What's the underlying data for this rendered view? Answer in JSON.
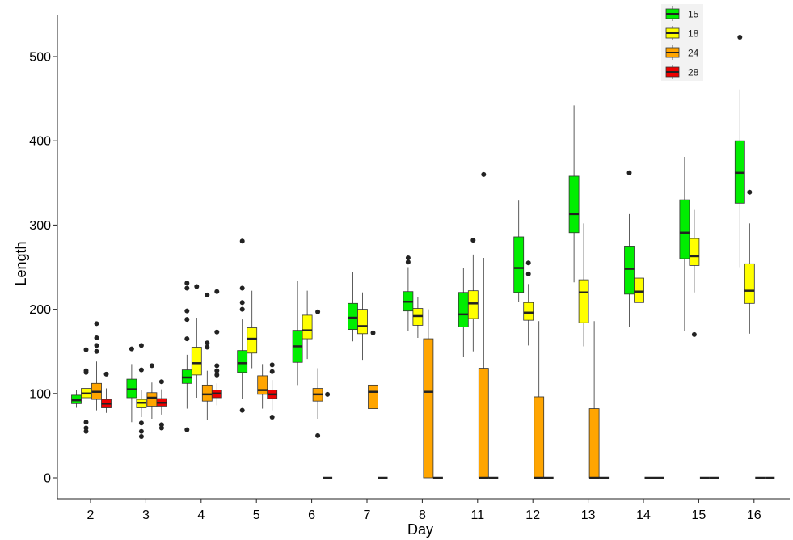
{
  "chart_data": {
    "type": "boxplot",
    "xlabel": "Day",
    "ylabel": "Length",
    "ylim": [
      -25,
      550
    ],
    "yticks": [
      0,
      100,
      200,
      300,
      400,
      500
    ],
    "grid": false,
    "legend_position": "top-right",
    "categories": [
      "2",
      "3",
      "4",
      "5",
      "6",
      "7",
      "8",
      "11",
      "12",
      "13",
      "14",
      "15",
      "16"
    ],
    "colors": {
      "15": "#00ee00",
      "18": "#ffff00",
      "24": "#ffa500",
      "28": "#ee0000"
    },
    "series": [
      {
        "name": "15",
        "boxes": [
          {
            "day": "2",
            "whislo": 83,
            "q1": 88,
            "med": 92,
            "q3": 98,
            "whishi": 104,
            "fliers": []
          },
          {
            "day": "3",
            "whislo": 66,
            "q1": 95,
            "med": 105,
            "q3": 117,
            "whishi": 135,
            "fliers": [
              153
            ]
          },
          {
            "day": "4",
            "whislo": 82,
            "q1": 112,
            "med": 119,
            "q3": 128,
            "whishi": 146,
            "fliers": [
              57,
              165,
              188,
              198,
              225,
              231
            ]
          },
          {
            "day": "5",
            "whislo": 94,
            "q1": 125,
            "med": 136,
            "q3": 151,
            "whishi": 188,
            "fliers": [
              80,
              200,
              208,
              225,
              281
            ]
          },
          {
            "day": "6",
            "whislo": 110,
            "q1": 137,
            "med": 156,
            "q3": 175,
            "whishi": 234,
            "fliers": []
          },
          {
            "day": "7",
            "whislo": 162,
            "q1": 176,
            "med": 190,
            "q3": 207,
            "whishi": 244,
            "fliers": []
          },
          {
            "day": "8",
            "whislo": 174,
            "q1": 198,
            "med": 209,
            "q3": 221,
            "whishi": 250,
            "fliers": [
              256,
              261
            ]
          },
          {
            "day": "11",
            "whislo": 143,
            "q1": 179,
            "med": 194,
            "q3": 220,
            "whishi": 249,
            "fliers": []
          },
          {
            "day": "12",
            "whislo": 209,
            "q1": 220,
            "med": 249,
            "q3": 286,
            "whishi": 329,
            "fliers": []
          },
          {
            "day": "13",
            "whislo": 232,
            "q1": 291,
            "med": 313,
            "q3": 358,
            "whishi": 442,
            "fliers": []
          },
          {
            "day": "14",
            "whislo": 179,
            "q1": 218,
            "med": 248,
            "q3": 275,
            "whishi": 313,
            "fliers": [
              362
            ]
          },
          {
            "day": "15",
            "whislo": 174,
            "q1": 260,
            "med": 291,
            "q3": 330,
            "whishi": 381,
            "fliers": []
          },
          {
            "day": "16",
            "whislo": 250,
            "q1": 326,
            "med": 362,
            "q3": 400,
            "whishi": 461,
            "fliers": [
              523
            ]
          }
        ]
      },
      {
        "name": "18",
        "boxes": [
          {
            "day": "2",
            "whislo": 82,
            "q1": 95,
            "med": 100,
            "q3": 106,
            "whishi": 117,
            "fliers": [
              55,
              59,
              66,
              125,
              127,
              152
            ]
          },
          {
            "day": "3",
            "whislo": 72,
            "q1": 83,
            "med": 89,
            "q3": 93,
            "whishi": 104,
            "fliers": [
              49,
              55,
              65,
              128,
              157
            ]
          },
          {
            "day": "4",
            "whislo": 95,
            "q1": 122,
            "med": 136,
            "q3": 155,
            "whishi": 190,
            "fliers": [
              227
            ]
          },
          {
            "day": "5",
            "whislo": 130,
            "q1": 148,
            "med": 165,
            "q3": 178,
            "whishi": 222,
            "fliers": []
          },
          {
            "day": "6",
            "whislo": 141,
            "q1": 165,
            "med": 175,
            "q3": 193,
            "whishi": 222,
            "fliers": []
          },
          {
            "day": "7",
            "whislo": 140,
            "q1": 171,
            "med": 180,
            "q3": 200,
            "whishi": 220,
            "fliers": []
          },
          {
            "day": "8",
            "whislo": 166,
            "q1": 181,
            "med": 192,
            "q3": 201,
            "whishi": 215,
            "fliers": []
          },
          {
            "day": "11",
            "whislo": 150,
            "q1": 189,
            "med": 207,
            "q3": 222,
            "whishi": 265,
            "fliers": [
              282
            ]
          },
          {
            "day": "12",
            "whislo": 157,
            "q1": 187,
            "med": 196,
            "q3": 208,
            "whishi": 230,
            "fliers": [
              242,
              255
            ]
          },
          {
            "day": "13",
            "whislo": 156,
            "q1": 184,
            "med": 220,
            "q3": 235,
            "whishi": 302,
            "fliers": []
          },
          {
            "day": "14",
            "whislo": 182,
            "q1": 208,
            "med": 221,
            "q3": 237,
            "whishi": 273,
            "fliers": []
          },
          {
            "day": "15",
            "whislo": 220,
            "q1": 252,
            "med": 263,
            "q3": 284,
            "whishi": 318,
            "fliers": [
              170
            ]
          },
          {
            "day": "16",
            "whislo": 171,
            "q1": 207,
            "med": 222,
            "q3": 254,
            "whishi": 302,
            "fliers": [
              339
            ]
          }
        ]
      },
      {
        "name": "24",
        "boxes": [
          {
            "day": "2",
            "whislo": 80,
            "q1": 93,
            "med": 102,
            "q3": 112,
            "whishi": 138,
            "fliers": [
              150,
              157,
              166,
              183
            ]
          },
          {
            "day": "3",
            "whislo": 70,
            "q1": 85,
            "med": 95,
            "q3": 101,
            "whishi": 113,
            "fliers": [
              133
            ]
          },
          {
            "day": "4",
            "whislo": 69,
            "q1": 91,
            "med": 99,
            "q3": 110,
            "whishi": 127,
            "fliers": [
              155,
              160,
              217
            ]
          },
          {
            "day": "5",
            "whislo": 82,
            "q1": 99,
            "med": 104,
            "q3": 121,
            "whishi": 135,
            "fliers": []
          },
          {
            "day": "6",
            "whislo": 70,
            "q1": 91,
            "med": 99,
            "q3": 106,
            "whishi": 130,
            "fliers": [
              50,
              197
            ]
          },
          {
            "day": "7",
            "whislo": 68,
            "q1": 82,
            "med": 102,
            "q3": 110,
            "whishi": 144,
            "fliers": [
              172
            ]
          },
          {
            "day": "8",
            "whislo": 0,
            "q1": 0,
            "med": 102,
            "q3": 165,
            "whishi": 200,
            "fliers": []
          },
          {
            "day": "11",
            "whislo": 0,
            "q1": 0,
            "med": 0,
            "q3": 130,
            "whishi": 261,
            "fliers": [
              360
            ]
          },
          {
            "day": "12",
            "whislo": 0,
            "q1": 0,
            "med": 0,
            "q3": 96,
            "whishi": 186,
            "fliers": []
          },
          {
            "day": "13",
            "whislo": 0,
            "q1": 0,
            "med": 0,
            "q3": 82,
            "whishi": 186,
            "fliers": []
          },
          {
            "day": "14",
            "whislo": 0,
            "q1": 0,
            "med": 0,
            "q3": 0,
            "whishi": 0,
            "fliers": []
          },
          {
            "day": "15",
            "whislo": 0,
            "q1": 0,
            "med": 0,
            "q3": 0,
            "whishi": 0,
            "fliers": []
          },
          {
            "day": "16",
            "whislo": 0,
            "q1": 0,
            "med": 0,
            "q3": 0,
            "whishi": 0,
            "fliers": []
          }
        ]
      },
      {
        "name": "28",
        "boxes": [
          {
            "day": "2",
            "whislo": 77,
            "q1": 83,
            "med": 88,
            "q3": 93,
            "whishi": 106,
            "fliers": [
              123
            ]
          },
          {
            "day": "3",
            "whislo": 75,
            "q1": 85,
            "med": 89,
            "q3": 94,
            "whishi": 105,
            "fliers": [
              59,
              63,
              114
            ]
          },
          {
            "day": "4",
            "whislo": 86,
            "q1": 95,
            "med": 100,
            "q3": 104,
            "whishi": 112,
            "fliers": [
              122,
              127,
              133,
              173,
              221
            ]
          },
          {
            "day": "5",
            "whislo": 80,
            "q1": 94,
            "med": 99,
            "q3": 104,
            "whishi": 116,
            "fliers": [
              72,
              126,
              134
            ]
          },
          {
            "day": "6",
            "whislo": 0,
            "q1": 0,
            "med": 0,
            "q3": 0,
            "whishi": 0,
            "fliers": [
              99
            ]
          },
          {
            "day": "7",
            "whislo": 0,
            "q1": 0,
            "med": 0,
            "q3": 0,
            "whishi": 0,
            "fliers": []
          },
          {
            "day": "8",
            "whislo": 0,
            "q1": 0,
            "med": 0,
            "q3": 0,
            "whishi": 0,
            "fliers": []
          },
          {
            "day": "11",
            "whislo": 0,
            "q1": 0,
            "med": 0,
            "q3": 0,
            "whishi": 0,
            "fliers": []
          },
          {
            "day": "12",
            "whislo": 0,
            "q1": 0,
            "med": 0,
            "q3": 0,
            "whishi": 0,
            "fliers": []
          },
          {
            "day": "13",
            "whislo": 0,
            "q1": 0,
            "med": 0,
            "q3": 0,
            "whishi": 0,
            "fliers": []
          },
          {
            "day": "14",
            "whislo": 0,
            "q1": 0,
            "med": 0,
            "q3": 0,
            "whishi": 0,
            "fliers": []
          },
          {
            "day": "15",
            "whislo": 0,
            "q1": 0,
            "med": 0,
            "q3": 0,
            "whishi": 0,
            "fliers": []
          },
          {
            "day": "16",
            "whislo": 0,
            "q1": 0,
            "med": 0,
            "q3": 0,
            "whishi": 0,
            "fliers": []
          }
        ]
      }
    ]
  }
}
